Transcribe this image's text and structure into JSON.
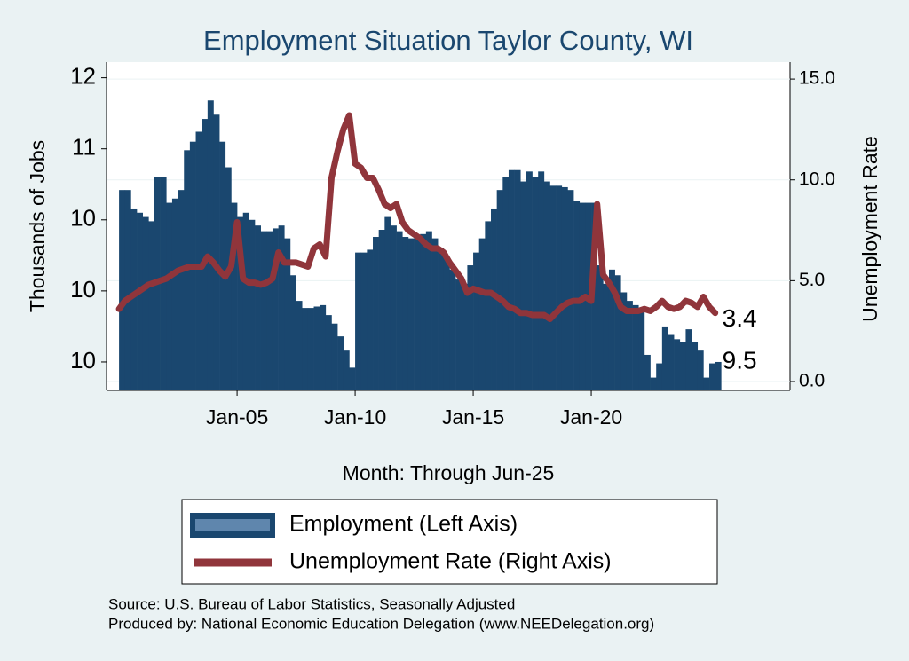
{
  "chart_data": {
    "type": "bar-line",
    "title": "Employment Situation Taylor  County, WI",
    "x_label": "Month: Through Jun-25",
    "y_label": "Thousands of Jobs",
    "y2_label": "Unemployment Rate",
    "source": "Source: U.S. Bureau of Labor Statistics, Seasonally Adjusted",
    "produced_by": "Produced by: National Economic Education Delegation (www.NEEDelegation.org)",
    "legend": "bottom",
    "x": [
      2000,
      2000.25,
      2000.5,
      2000.75,
      2001,
      2001.25,
      2001.5,
      2001.75,
      2002,
      2002.25,
      2002.5,
      2002.75,
      2003,
      2003.25,
      2003.5,
      2003.75,
      2004,
      2004.25,
      2004.5,
      2004.75,
      2005,
      2005.25,
      2005.5,
      2005.75,
      2006,
      2006.25,
      2006.5,
      2006.75,
      2007,
      2007.25,
      2007.5,
      2007.75,
      2008,
      2008.25,
      2008.5,
      2008.75,
      2009,
      2009.25,
      2009.5,
      2009.75,
      2010,
      2010.25,
      2010.5,
      2010.75,
      2011,
      2011.25,
      2011.5,
      2011.75,
      2012,
      2012.25,
      2012.5,
      2012.75,
      2013,
      2013.25,
      2013.5,
      2013.75,
      2014,
      2014.25,
      2014.5,
      2014.75,
      2015,
      2015.25,
      2015.5,
      2015.75,
      2016,
      2016.25,
      2016.5,
      2016.75,
      2017,
      2017.25,
      2017.5,
      2017.75,
      2018,
      2018.25,
      2018.5,
      2018.75,
      2019,
      2019.25,
      2019.5,
      2019.75,
      2020,
      2020.25,
      2020.5,
      2020.75,
      2021,
      2021.25,
      2021.5,
      2021.75,
      2022,
      2022.25,
      2022.5,
      2022.75,
      2023,
      2023.25,
      2023.5,
      2023.75,
      2024,
      2024.25,
      2024.5,
      2024.75,
      2025,
      2025.25
    ],
    "series": [
      {
        "name": "Employment (Left Axis)",
        "type": "bar",
        "axis": "y",
        "color": "#1a476f",
        "values": [
          10.71,
          10.71,
          10.58,
          10.55,
          10.52,
          10.49,
          10.8,
          10.8,
          10.62,
          10.65,
          10.71,
          10.99,
          11.05,
          11.12,
          11.21,
          11.34,
          11.24,
          11.05,
          10.87,
          10.62,
          10.52,
          10.55,
          10.5,
          10.46,
          10.42,
          10.42,
          10.44,
          10.46,
          10.37,
          10.11,
          9.93,
          9.88,
          9.88,
          9.89,
          9.9,
          9.83,
          9.77,
          9.68,
          9.58,
          9.46,
          10.27,
          10.27,
          10.29,
          10.38,
          10.43,
          10.52,
          10.46,
          10.42,
          10.38,
          10.37,
          10.38,
          10.4,
          10.42,
          10.37,
          10.3,
          10.24,
          10.15,
          10.08,
          10.05,
          10.18,
          10.27,
          10.37,
          10.49,
          10.58,
          10.71,
          10.8,
          10.85,
          10.85,
          10.77,
          10.84,
          10.8,
          10.84,
          10.77,
          10.74,
          10.74,
          10.73,
          10.71,
          10.63,
          10.62,
          10.62,
          10.62,
          10.18,
          10.05,
          10.15,
          10.11,
          9.99,
          9.93,
          9.9,
          9.86,
          9.55,
          9.39,
          9.49,
          9.75,
          9.69,
          9.66,
          9.64,
          9.73,
          9.64,
          9.58,
          9.39,
          9.49,
          9.5
        ]
      },
      {
        "name": "Unemployment Rate (Right Axis)",
        "type": "line",
        "axis": "y2",
        "color": "#90353b",
        "values": [
          3.6,
          4.0,
          4.2,
          4.4,
          4.6,
          4.8,
          4.9,
          5.0,
          5.1,
          5.3,
          5.5,
          5.6,
          5.7,
          5.7,
          5.7,
          6.2,
          5.9,
          5.5,
          5.2,
          5.7,
          7.9,
          5.1,
          4.9,
          4.9,
          4.8,
          4.9,
          5.1,
          6.4,
          5.9,
          5.9,
          5.9,
          5.8,
          5.7,
          6.6,
          6.8,
          6.2,
          10.1,
          11.4,
          12.5,
          13.2,
          10.8,
          10.6,
          10.1,
          10.1,
          9.5,
          8.8,
          8.6,
          8.8,
          7.9,
          7.5,
          7.3,
          7.1,
          6.8,
          6.6,
          6.6,
          6.4,
          5.9,
          5.5,
          5.1,
          4.4,
          4.6,
          4.5,
          4.4,
          4.4,
          4.2,
          4.0,
          3.7,
          3.6,
          3.4,
          3.4,
          3.3,
          3.3,
          3.3,
          3.1,
          3.4,
          3.7,
          3.9,
          4.0,
          4.0,
          4.2,
          4.0,
          8.8,
          5.3,
          4.9,
          4.4,
          3.7,
          3.5,
          3.5,
          3.5,
          3.6,
          3.5,
          3.7,
          4.0,
          3.7,
          3.6,
          3.7,
          4.0,
          3.9,
          3.7,
          4.2,
          3.7,
          3.4
        ]
      }
    ],
    "xlim": [
      1999.47,
      2028.42
    ],
    "xticks": [
      {
        "value": 2005,
        "label": "Jan-05"
      },
      {
        "value": 2010,
        "label": "Jan-10"
      },
      {
        "value": 2015,
        "label": "Jan-15"
      },
      {
        "value": 2020,
        "label": "Jan-20"
      }
    ],
    "ylim": [
      9.3,
      11.61
    ],
    "yticks": [
      {
        "value": 9.5,
        "label": "10"
      },
      {
        "value": 10,
        "label": "10"
      },
      {
        "value": 10.5,
        "label": "10"
      },
      {
        "value": 11,
        "label": "11"
      },
      {
        "value": 11.5,
        "label": "12"
      }
    ],
    "y2lim": [
      -0.44,
      15.84
    ],
    "y2ticks": [
      {
        "value": 0,
        "label": "0.0"
      },
      {
        "value": 5,
        "label": "5.0"
      },
      {
        "value": 10,
        "label": "10.0"
      },
      {
        "value": 15,
        "label": "15.0"
      }
    ]
  }
}
